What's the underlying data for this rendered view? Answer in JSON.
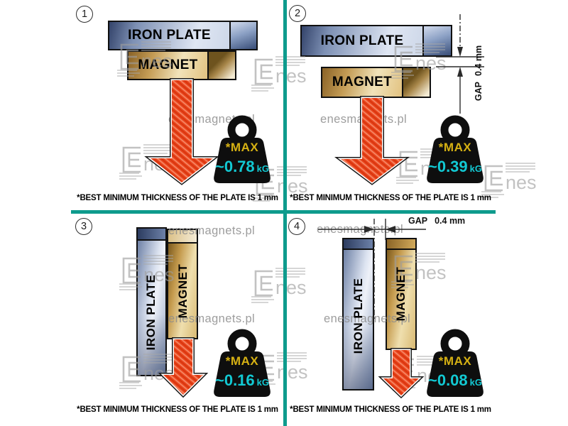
{
  "watermark": {
    "site": "enesmagnets.pl",
    "logo_text": "nes"
  },
  "colors": {
    "divider_teal": "#0e9b8d",
    "arrow_red": "#e8421c",
    "max_yellow": "#d6b113",
    "value_cyan": "#12c9d3",
    "iron_blue": "#8ba0c4",
    "magnet_gold": "#c49c55"
  },
  "panels": [
    {
      "number": "1",
      "iron_label": "IRON PLATE",
      "magnet_label": "MAGNET",
      "max_label": "*MAX",
      "value": "~0.78",
      "unit": "kG",
      "note": "*BEST MINIMUM THICKNESS OF THE PLATE IS",
      "note_bold": "1 mm"
    },
    {
      "number": "2",
      "iron_label": "IRON PLATE",
      "magnet_label": "MAGNET",
      "gap_label": "GAP",
      "gap_value": "0.4 mm",
      "max_label": "*MAX",
      "value": "~0.39",
      "unit": "kG",
      "note": "*BEST MINIMUM THICKNESS OF THE PLATE IS",
      "note_bold": "1 mm"
    },
    {
      "number": "3",
      "iron_label": "IRON PLATE",
      "magnet_label": "MAGNET",
      "max_label": "*MAX",
      "value": "~0.16",
      "unit": "kG",
      "note": "*BEST MINIMUM THICKNESS OF THE PLATE IS",
      "note_bold": "1 mm"
    },
    {
      "number": "4",
      "iron_label": "IRON PLATE",
      "magnet_label": "MAGNET",
      "gap_label": "GAP",
      "gap_value": "0.4 mm",
      "max_label": "*MAX",
      "value": "~0.08",
      "unit": "kG",
      "note": "*BEST MINIMUM THICKNESS OF THE PLATE IS",
      "note_bold": "1 mm"
    }
  ]
}
